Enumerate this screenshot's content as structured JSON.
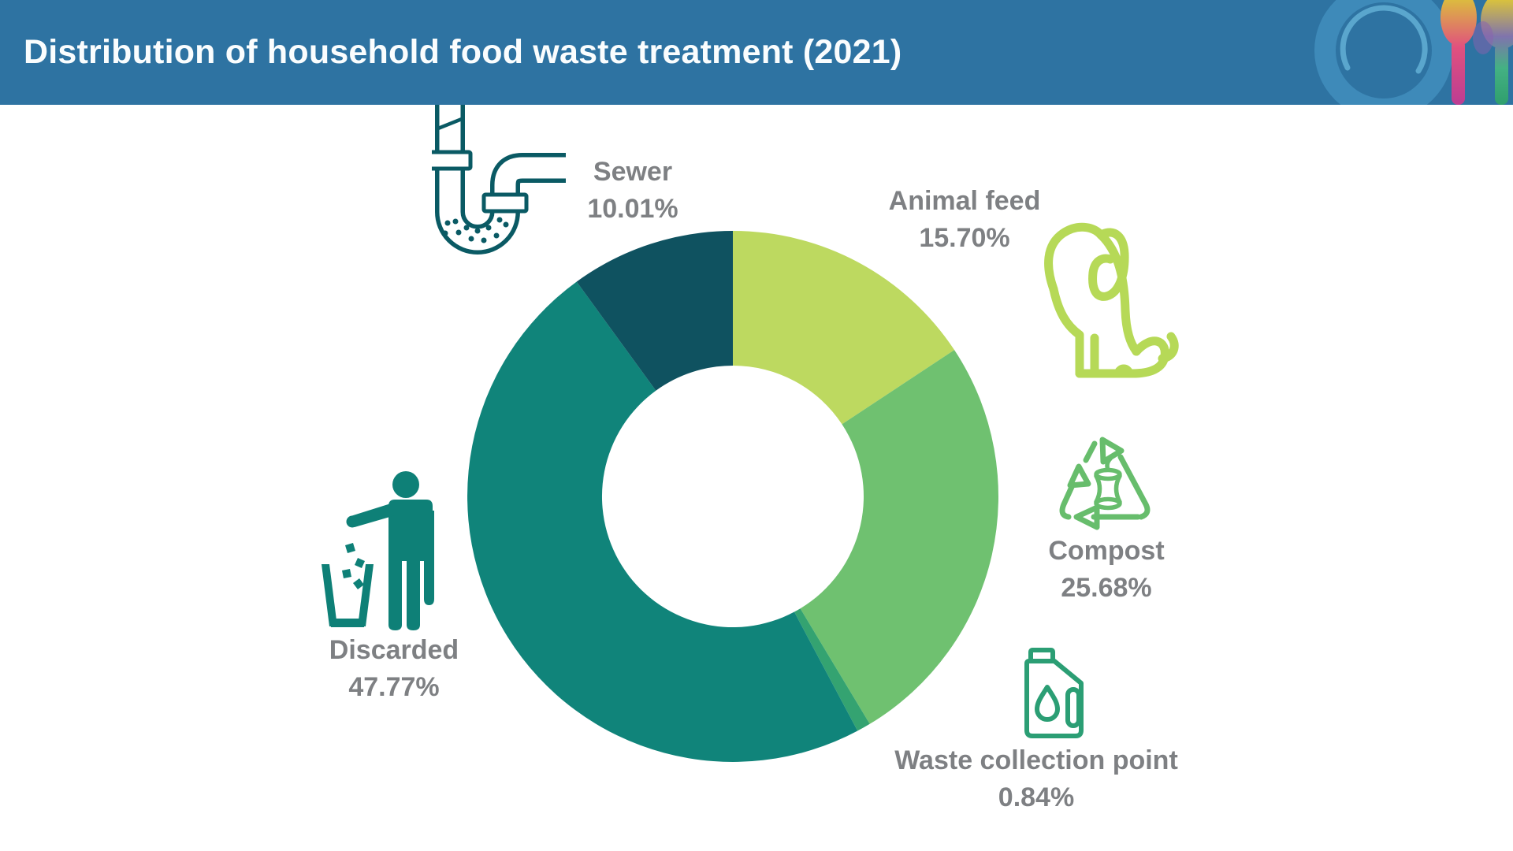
{
  "header": {
    "title": "Distribution of household food waste treatment (2021)",
    "bg_color": "#2e73a2",
    "logo": {
      "name": "plate-and-cutlery-logo",
      "plate_rim_color": "#3e8ab9",
      "plate_center_color": "#2e73a2",
      "plate_highlight_color": "#5aa6cd"
    }
  },
  "chart_data": {
    "type": "pie",
    "subtype": "donut",
    "title": "Distribution of household food waste treatment (2021)",
    "year": "2021",
    "unit": "%",
    "start_angle_deg": 0,
    "direction": "clockwise",
    "legend_position": "callouts-around-chart",
    "label_color": "#7e8083",
    "segments": [
      {
        "label": "Animal feed",
        "value": 15.7,
        "pct": "15.70%",
        "color": "#bdd960",
        "icon": "dog-icon"
      },
      {
        "label": "Compost",
        "value": 25.68,
        "pct": "25.68%",
        "color": "#6fc170",
        "icon": "recycle-compost-icon"
      },
      {
        "label": "Waste collection point",
        "value": 0.84,
        "pct": "0.84%",
        "color": "#34a371",
        "icon": "collection-jug-icon"
      },
      {
        "label": "Discarded",
        "value": 47.77,
        "pct": "47.77%",
        "color": "#10847a",
        "icon": "litter-person-icon"
      },
      {
        "label": "Sewer",
        "value": 10.01,
        "pct": "10.01%",
        "color": "#0f5260",
        "icon": "sewer-pipe-icon"
      }
    ]
  },
  "icons": {
    "sewer_color": "#0a5a64",
    "dog_color": "#b6d957",
    "recycle_color": "#67bd6c",
    "jug_color": "#2b9e74",
    "person_color": "#0e8077"
  }
}
